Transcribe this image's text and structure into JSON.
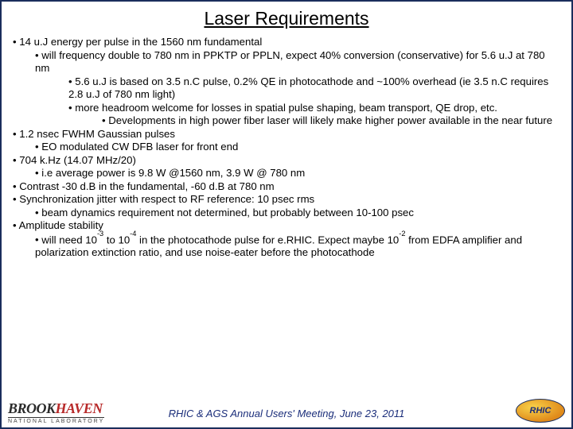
{
  "title": "Laser Requirements",
  "bullets": [
    {
      "level": 0,
      "text": "14 u.J energy per pulse in the 1560 nm fundamental"
    },
    {
      "level": 1,
      "text": "will frequency double to 780 nm in PPKTP or PPLN, expect 40%  conversion (conservative) for 5.6 u.J at 780 nm"
    },
    {
      "level": 2,
      "text": "5.6 u.J is based on 3.5 n.C pulse, 0.2% QE in photocathode and ~100% overhead (ie 3.5 n.C requires 2.8 u.J of 780 nm light)"
    },
    {
      "level": 2,
      "text": "more headroom welcome for losses in spatial pulse shaping, beam transport, QE drop,  etc."
    },
    {
      "level": 3,
      "text": "Developments in high power fiber laser will likely make higher power available in the near future"
    },
    {
      "level": 0,
      "text": "1.2 nsec FWHM Gaussian pulses"
    },
    {
      "level": 1,
      "text": "EO modulated CW DFB laser for front end"
    },
    {
      "level": 0,
      "text": "704 k.Hz (14.07 MHz/20)"
    },
    {
      "level": 1,
      "text": "i.e average power is 9.8 W @1560 nm, 3.9 W @ 780 nm"
    },
    {
      "level": 0,
      "text": "Contrast -30 d.B in the fundamental, -60 d.B at 780 nm"
    },
    {
      "level": 0,
      "text": "Synchronization jitter with respect to RF reference: 10 psec rms"
    },
    {
      "level": 1,
      "text": "beam dynamics requirement not determined, but probably between 10-100 psec"
    },
    {
      "level": 0,
      "text": "Amplitude stability"
    },
    {
      "level": 1,
      "html": "will need 10<sup>-3</sup> to 10<sup>-4</sup> in the photocathode pulse for e.RHIC.  Expect maybe 10<sup>-2</sup> from EDFA amplifier and polarization extinction ratio, and use noise-eater before the photocathode"
    }
  ],
  "footer": {
    "lab_name_main": "BROOKHAVEN",
    "lab_name_sub": "NATIONAL LABORATORY",
    "meeting_text": "RHIC & AGS Annual Users' Meeting,   June 23, 2011",
    "right_logo_text": "RHIC"
  },
  "colors": {
    "border": "#1a2d5c",
    "meeting_text": "#1a2d7a",
    "brook_accent": "#b82a2a"
  }
}
